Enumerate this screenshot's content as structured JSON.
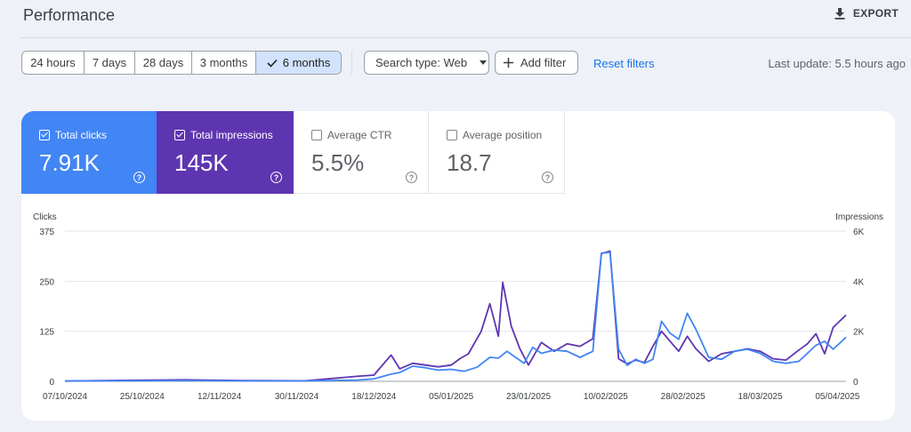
{
  "header": {
    "title": "Performance",
    "export_label": "EXPORT"
  },
  "toolbar": {
    "ranges": [
      {
        "label": "24 hours",
        "selected": false
      },
      {
        "label": "7 days",
        "selected": false
      },
      {
        "label": "28 days",
        "selected": false
      },
      {
        "label": "3 months",
        "selected": false
      },
      {
        "label": "6 months",
        "selected": true
      }
    ],
    "search_type_label": "Search type: Web",
    "add_filter_label": "Add filter",
    "reset_filters_label": "Reset filters",
    "last_update": "Last update: 5.5 hours ago"
  },
  "metrics": [
    {
      "label": "Total clicks",
      "value": "7.91K",
      "checked": true,
      "color": "#4285f4"
    },
    {
      "label": "Total impressions",
      "value": "145K",
      "checked": true,
      "color": "#5e35b1"
    },
    {
      "label": "Average CTR",
      "value": "5.5%",
      "checked": false
    },
    {
      "label": "Average position",
      "value": "18.7",
      "checked": false
    }
  ],
  "colors": {
    "accent": "#1a73e8",
    "clicks": "#4285f4",
    "impressions": "#5e35b1",
    "selected_range_bg": "#d3e3fd"
  },
  "chart_data": {
    "type": "line",
    "ylabel_left": "Clicks",
    "ylabel_right": "Impressions",
    "ylim_left": [
      0,
      375
    ],
    "ylim_right": [
      0,
      6000
    ],
    "yticks_left": [
      "0",
      "125",
      "250",
      "375"
    ],
    "yticks_right": [
      "0",
      "2K",
      "4K",
      "6K"
    ],
    "x_range": [
      "07/10/2024",
      "07/04/2025"
    ],
    "xtick_labels": [
      "07/10/2024",
      "25/10/2024",
      "12/11/2024",
      "30/11/2024",
      "18/12/2024",
      "05/01/2025",
      "23/01/2025",
      "10/02/2025",
      "28/02/2025",
      "18/03/2025",
      "05/04/2025"
    ],
    "grid": true,
    "series": [
      {
        "name": "Total clicks",
        "axis": "left",
        "points": [
          [
            "07/10/2024",
            1
          ],
          [
            "21/10/2024",
            1
          ],
          [
            "04/11/2024",
            2
          ],
          [
            "18/11/2024",
            1
          ],
          [
            "02/12/2024",
            1
          ],
          [
            "14/12/2024",
            3
          ],
          [
            "18/12/2024",
            6
          ],
          [
            "22/12/2024",
            18
          ],
          [
            "24/12/2024",
            22
          ],
          [
            "27/12/2024",
            38
          ],
          [
            "30/12/2024",
            34
          ],
          [
            "02/01/2025",
            28
          ],
          [
            "05/01/2025",
            30
          ],
          [
            "08/01/2025",
            25
          ],
          [
            "11/01/2025",
            35
          ],
          [
            "14/01/2025",
            60
          ],
          [
            "16/01/2025",
            58
          ],
          [
            "18/01/2025",
            75
          ],
          [
            "20/01/2025",
            60
          ],
          [
            "22/01/2025",
            45
          ],
          [
            "24/01/2025",
            85
          ],
          [
            "26/01/2025",
            70
          ],
          [
            "29/01/2025",
            78
          ],
          [
            "01/02/2025",
            75
          ],
          [
            "04/02/2025",
            60
          ],
          [
            "07/02/2025",
            75
          ],
          [
            "09/02/2025",
            320
          ],
          [
            "11/02/2025",
            322
          ],
          [
            "13/02/2025",
            80
          ],
          [
            "15/02/2025",
            40
          ],
          [
            "17/02/2025",
            55
          ],
          [
            "19/02/2025",
            45
          ],
          [
            "21/02/2025",
            55
          ],
          [
            "23/02/2025",
            150
          ],
          [
            "25/02/2025",
            120
          ],
          [
            "27/02/2025",
            105
          ],
          [
            "01/03/2025",
            170
          ],
          [
            "03/03/2025",
            130
          ],
          [
            "06/03/2025",
            60
          ],
          [
            "09/03/2025",
            55
          ],
          [
            "12/03/2025",
            75
          ],
          [
            "15/03/2025",
            80
          ],
          [
            "18/03/2025",
            70
          ],
          [
            "21/03/2025",
            50
          ],
          [
            "24/03/2025",
            45
          ],
          [
            "27/03/2025",
            50
          ],
          [
            "29/03/2025",
            70
          ],
          [
            "31/03/2025",
            90
          ],
          [
            "02/04/2025",
            100
          ],
          [
            "04/04/2025",
            80
          ],
          [
            "07/04/2025",
            110
          ]
        ]
      },
      {
        "name": "Total impressions",
        "axis": "right",
        "points": [
          [
            "07/10/2024",
            10
          ],
          [
            "21/10/2024",
            40
          ],
          [
            "04/11/2024",
            60
          ],
          [
            "18/11/2024",
            30
          ],
          [
            "02/12/2024",
            20
          ],
          [
            "14/12/2024",
            200
          ],
          [
            "18/12/2024",
            250
          ],
          [
            "22/12/2024",
            1050
          ],
          [
            "24/12/2024",
            500
          ],
          [
            "27/12/2024",
            720
          ],
          [
            "30/12/2024",
            650
          ],
          [
            "02/01/2025",
            580
          ],
          [
            "05/01/2025",
            650
          ],
          [
            "07/01/2025",
            900
          ],
          [
            "09/01/2025",
            1100
          ],
          [
            "12/01/2025",
            2000
          ],
          [
            "14/01/2025",
            3100
          ],
          [
            "16/01/2025",
            1800
          ],
          [
            "17/01/2025",
            3950
          ],
          [
            "19/01/2025",
            2200
          ],
          [
            "21/01/2025",
            1300
          ],
          [
            "23/01/2025",
            650
          ],
          [
            "26/01/2025",
            1550
          ],
          [
            "29/01/2025",
            1200
          ],
          [
            "01/02/2025",
            1500
          ],
          [
            "04/02/2025",
            1400
          ],
          [
            "07/02/2025",
            1700
          ],
          [
            "09/02/2025",
            5100
          ],
          [
            "11/02/2025",
            5200
          ],
          [
            "13/02/2025",
            900
          ],
          [
            "15/02/2025",
            700
          ],
          [
            "17/02/2025",
            850
          ],
          [
            "19/02/2025",
            750
          ],
          [
            "21/02/2025",
            1400
          ],
          [
            "23/02/2025",
            2000
          ],
          [
            "25/02/2025",
            1600
          ],
          [
            "27/02/2025",
            1200
          ],
          [
            "01/03/2025",
            1800
          ],
          [
            "03/03/2025",
            1300
          ],
          [
            "06/03/2025",
            800
          ],
          [
            "09/03/2025",
            1100
          ],
          [
            "12/03/2025",
            1200
          ],
          [
            "15/03/2025",
            1300
          ],
          [
            "18/03/2025",
            1200
          ],
          [
            "21/03/2025",
            900
          ],
          [
            "24/03/2025",
            850
          ],
          [
            "27/03/2025",
            1250
          ],
          [
            "29/03/2025",
            1500
          ],
          [
            "31/03/2025",
            1900
          ],
          [
            "02/04/2025",
            1100
          ],
          [
            "04/04/2025",
            2150
          ],
          [
            "07/04/2025",
            2650
          ]
        ]
      }
    ]
  }
}
